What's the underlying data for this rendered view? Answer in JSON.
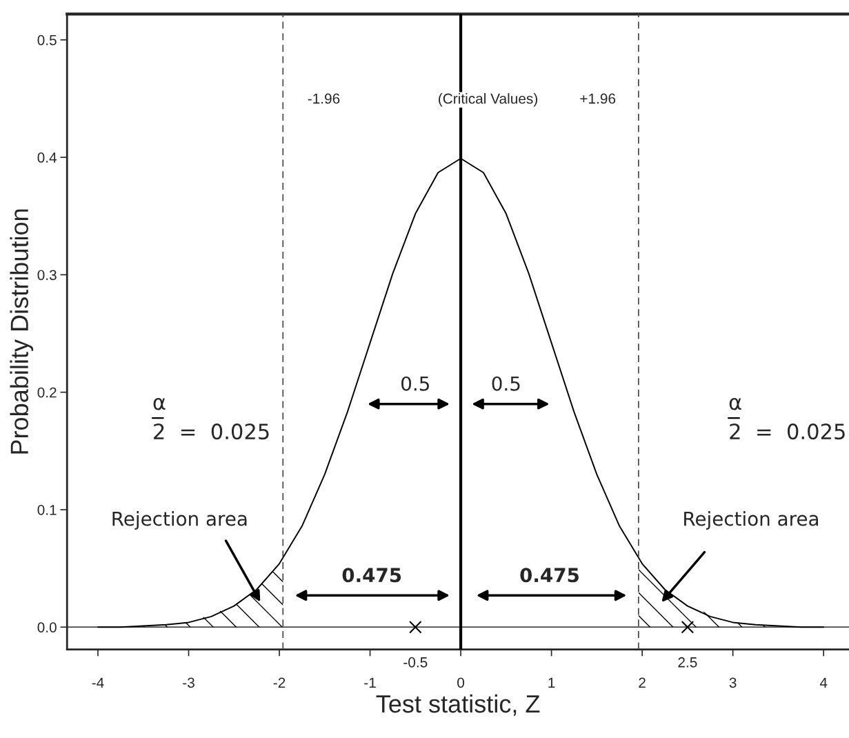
{
  "chart_data": {
    "type": "line",
    "xlabel": "Test statistic, Z",
    "ylabel": "Probability Distribution",
    "xlim": [
      -4.34,
      4.28
    ],
    "ylim": [
      -0.019,
      0.522
    ],
    "xticks": [
      -4,
      -3,
      -2,
      -1,
      0,
      1,
      2,
      3,
      4
    ],
    "yticks": [
      {
        "value": 0,
        "label": "0.0"
      },
      0.1,
      0.2,
      0.3,
      0.4,
      0.5
    ],
    "grid": false,
    "legend": false,
    "series": [
      {
        "color": "#000000",
        "x": [
          -4,
          -3.75,
          -3.5,
          -3.25,
          -3,
          -2.75,
          -2.5,
          -2.25,
          -2,
          -1.75,
          -1.5,
          -1.25,
          -1,
          -0.75,
          -0.5,
          -0.25,
          0,
          0.25,
          0.5,
          0.75,
          1,
          1.25,
          1.5,
          1.75,
          2,
          2.25,
          2.5,
          2.75,
          3,
          3.25,
          3.5,
          3.75,
          4
        ],
        "values": [
          0.0,
          0.0,
          0.001,
          0.002,
          0.004,
          0.009,
          0.018,
          0.032,
          0.054,
          0.086,
          0.13,
          0.183,
          0.242,
          0.301,
          0.352,
          0.387,
          0.399,
          0.387,
          0.352,
          0.301,
          0.242,
          0.183,
          0.13,
          0.086,
          0.054,
          0.032,
          0.018,
          0.009,
          0.004,
          0.002,
          0.001,
          0.0,
          0.0
        ]
      },
      {
        "type": "area",
        "color": "#000000",
        "x": [
          -3.5,
          -3,
          -2.5,
          -2.25,
          -1.96
        ],
        "values": [
          0.001,
          0.004,
          0.018,
          0.032,
          0.058
        ]
      },
      {
        "type": "area",
        "color": "#000000",
        "x": [
          1.96,
          2.25,
          2.5,
          3,
          3.5
        ],
        "values": [
          0.058,
          0.032,
          0.018,
          0.004,
          0.001
        ]
      },
      {
        "type": "scatter",
        "color": "#000000",
        "marker": "cross",
        "x": [
          -0.5,
          2.5
        ],
        "values": [
          0,
          0
        ]
      }
    ],
    "ref_lines": [
      {
        "axis": "x",
        "value": -1.96,
        "label": "-1.96",
        "color": "#444444",
        "line_style": "dashed"
      },
      {
        "axis": "x",
        "value": 1.96,
        "label": "+1.96",
        "color": "#444444",
        "line_style": "dashed"
      },
      {
        "axis": "x",
        "value": 0,
        "color": "#000000",
        "line_style": "solid"
      },
      {
        "axis": "y",
        "value": 0,
        "color": "#000000",
        "line_style": "solid"
      }
    ],
    "annotations": [
      "(Critical Values)",
      "α",
      "2  =  0.025",
      "α",
      "2  =  0.025",
      "0.5",
      "0.5",
      "0.475",
      "0.475",
      "Rejection area",
      "Rejection area",
      "-0.5",
      "2.5"
    ]
  }
}
